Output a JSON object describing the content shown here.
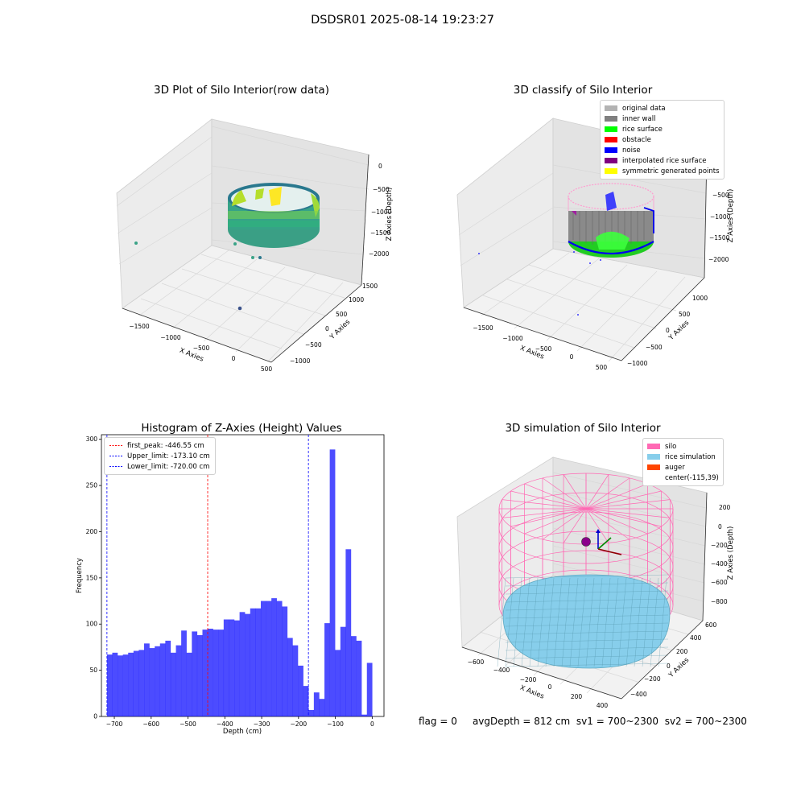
{
  "suptitle": "DSDSR01 2025-08-14 19:23:27",
  "panels": {
    "raw": {
      "title": "3D Plot of Silo Interior(row data)",
      "xlabel": "X Axies",
      "ylabel": "Y Axies",
      "zlabel": "Z Axies (Depth)",
      "xticks": [
        "−1500",
        "−1000",
        "−500",
        "0",
        "500"
      ],
      "yticks": [
        "1500",
        "1000",
        "500",
        "0",
        "−500",
        "−1000"
      ],
      "zticks": [
        "0",
        "−500",
        "−1000",
        "−1500",
        "−2000"
      ]
    },
    "classify": {
      "title": "3D classify of Silo Interior",
      "xlabel": "X Axies",
      "ylabel": "Y Axies",
      "zlabel": "Z Axies (Depth)",
      "xticks": [
        "−1500",
        "−1000",
        "−500",
        "0",
        "500"
      ],
      "yticks": [
        "1000",
        "500",
        "0",
        "−500",
        "−1000"
      ],
      "zticks": [
        "0",
        "−500",
        "−1000",
        "−1500",
        "−2000"
      ],
      "legend": [
        {
          "label": "original data",
          "color": "#b3b3b3"
        },
        {
          "label": "inner wall",
          "color": "#808080"
        },
        {
          "label": "rice surface",
          "color": "#00ff00"
        },
        {
          "label": "obstacle",
          "color": "#ff0000"
        },
        {
          "label": "noise",
          "color": "#0000ff"
        },
        {
          "label": "interpolated rice surface",
          "color": "#800080"
        },
        {
          "label": "symmetric generated points",
          "color": "#ffff00"
        }
      ]
    },
    "simulation": {
      "title": "3D simulation of Silo Interior",
      "xlabel": "X Axies",
      "ylabel": "Y Axies",
      "zlabel": "Z Axies (Depth)",
      "xticks": [
        "−600",
        "−400",
        "−200",
        "0",
        "200",
        "400"
      ],
      "yticks": [
        "600",
        "400",
        "200",
        "0",
        "−200",
        "−400"
      ],
      "zticks": [
        "200",
        "0",
        "−200",
        "−400",
        "−600",
        "−800"
      ],
      "legend": [
        {
          "label": "silo",
          "color": "#ff69b4"
        },
        {
          "label": "rice simulation",
          "color": "#87ceeb"
        },
        {
          "label": "auger",
          "color": "#ff4500"
        },
        {
          "label": "center(-115,39)",
          "color": ""
        }
      ]
    },
    "histogram": {
      "title": "Histogram of Z-Axies (Height) Values",
      "xlabel": "Depth (cm)",
      "ylabel": "Frequency",
      "legend": [
        {
          "label": "first_peak: -446.55 cm",
          "color": "#ff0000"
        },
        {
          "label": "Upper_limit: -173.10 cm",
          "color": "#0000ff"
        },
        {
          "label": "Lower_limit: -720.00 cm",
          "color": "#0000ff"
        }
      ]
    }
  },
  "chart_data": {
    "type": "bar",
    "title": "Histogram of Z-Axies (Height) Values",
    "xlabel": "Depth (cm)",
    "ylabel": "Frequency",
    "xlim": [
      -735,
      32
    ],
    "ylim": [
      0,
      305
    ],
    "xticks": [
      -700,
      -600,
      -500,
      -400,
      -300,
      -200,
      -100,
      0
    ],
    "xtick_labels": [
      "−700",
      "−600",
      "−500",
      "−400",
      "−300",
      "−200",
      "−100",
      "0"
    ],
    "yticks": [
      0,
      50,
      100,
      150,
      200,
      250,
      300
    ],
    "bin_start": -720,
    "bin_width": 14.4,
    "counts": [
      67,
      69,
      66,
      67,
      69,
      71,
      72,
      79,
      74,
      76,
      79,
      82,
      69,
      77,
      93,
      69,
      92,
      88,
      94,
      95,
      94,
      94,
      105,
      105,
      104,
      113,
      111,
      117,
      117,
      125,
      125,
      128,
      125,
      119,
      85,
      77,
      55,
      33,
      7,
      26,
      19,
      101,
      289,
      72,
      97,
      181,
      87,
      82,
      2,
      58
    ],
    "bar_color": "#0000ff",
    "bar_alpha": 0.7,
    "vlines": [
      {
        "x": -446.55,
        "color": "#ff0000",
        "label": "first_peak: -446.55 cm"
      },
      {
        "x": -173.1,
        "color": "#0000ff",
        "label": "Upper_limit: -173.10 cm"
      },
      {
        "x": -720.0,
        "color": "#0000ff",
        "label": "Lower_limit: -720.00 cm"
      }
    ]
  },
  "status": {
    "flag": "flag = 0",
    "avg": "avgDepth = 812 cm",
    "sv1": "sv1 = 700~2300",
    "sv2": "sv2 = 700~2300"
  }
}
